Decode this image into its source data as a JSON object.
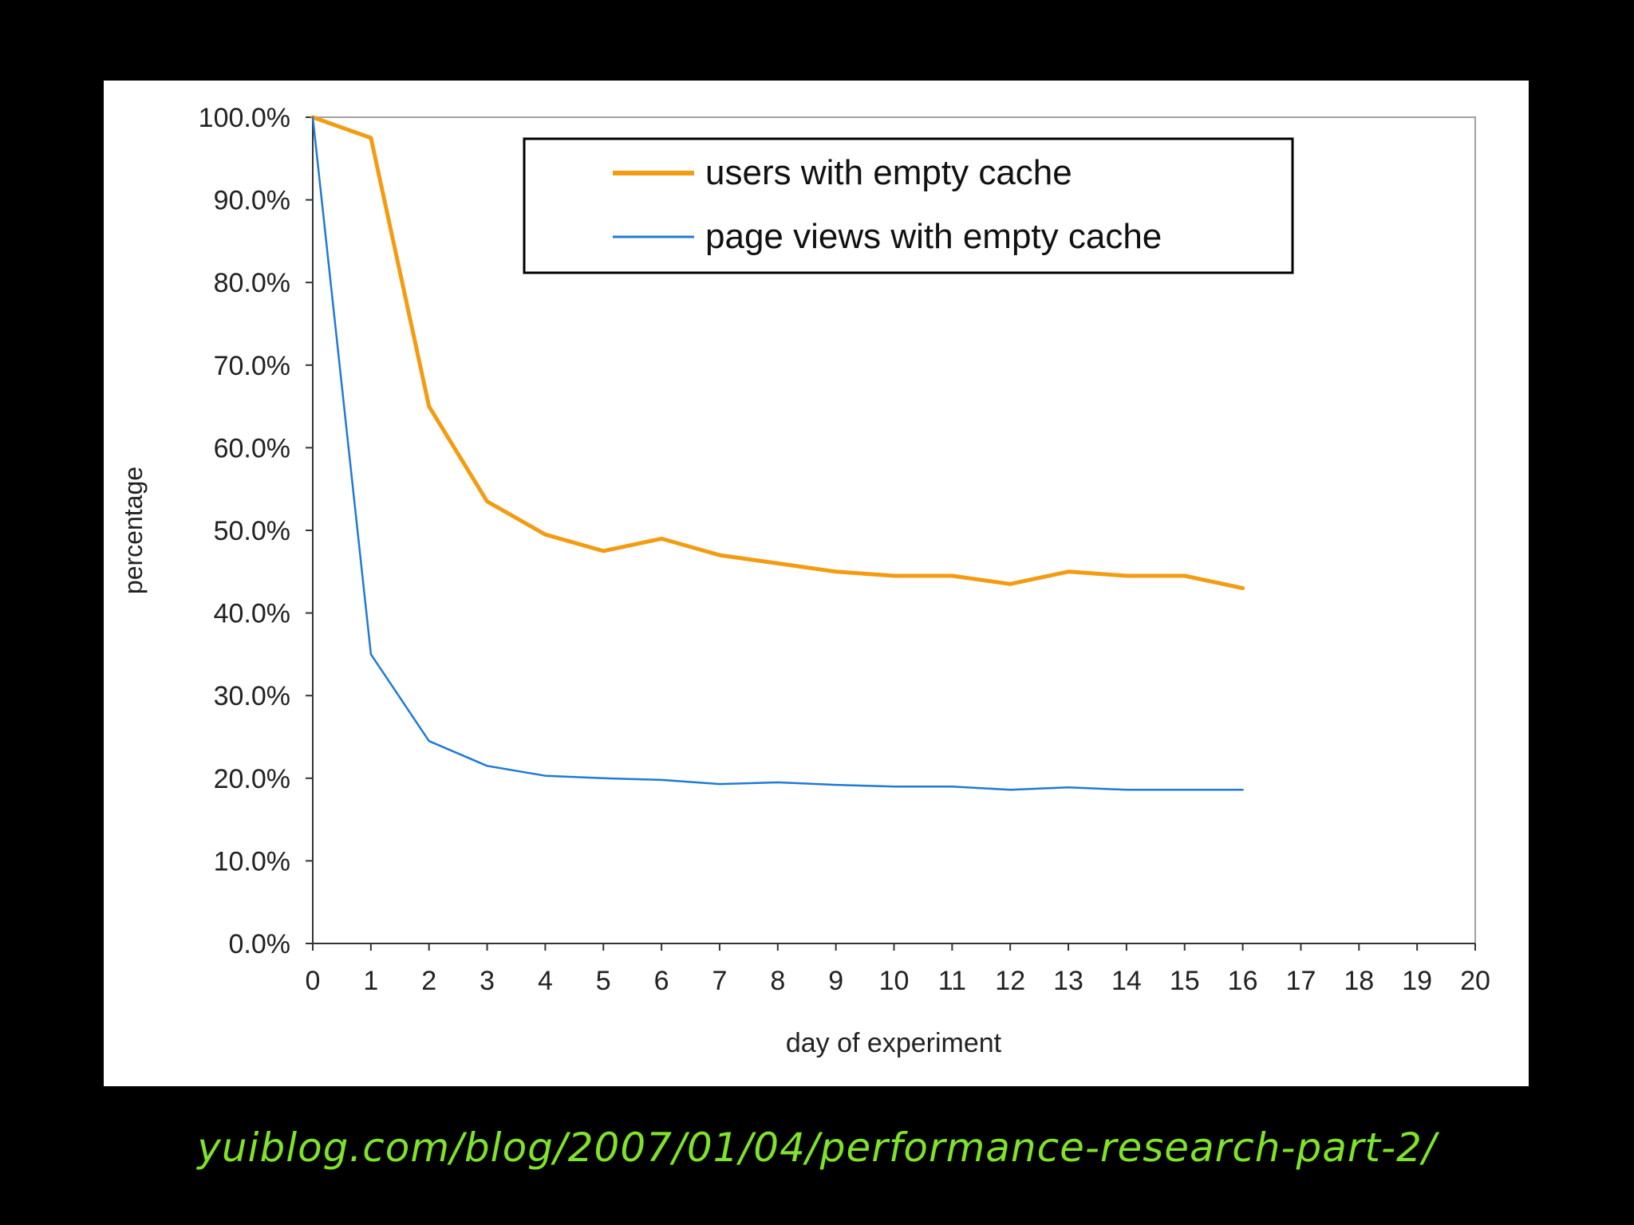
{
  "slide": {
    "background": "#000000",
    "source_url": "yuiblog.com/blog/2007/01/04/performance-research-part-2/",
    "source_color": "#7fe32a"
  },
  "chart_data": {
    "type": "line",
    "xlabel": "day of experiment",
    "ylabel": "percentage",
    "xlim": [
      0,
      20
    ],
    "ylim": [
      0,
      100
    ],
    "x_ticks": [
      "0",
      "1",
      "2",
      "3",
      "4",
      "5",
      "6",
      "7",
      "8",
      "9",
      "10",
      "11",
      "12",
      "13",
      "14",
      "15",
      "16",
      "17",
      "18",
      "19",
      "20"
    ],
    "y_ticks": [
      "0.0%",
      "10.0%",
      "20.0%",
      "30.0%",
      "40.0%",
      "50.0%",
      "60.0%",
      "70.0%",
      "80.0%",
      "90.0%",
      "100.0%"
    ],
    "grid": false,
    "legend_position": "top-center",
    "series": [
      {
        "name": "users with empty cache",
        "color": "#f39c12",
        "x": [
          0,
          1,
          2,
          3,
          4,
          5,
          6,
          7,
          8,
          9,
          10,
          11,
          12,
          13,
          14,
          15,
          16
        ],
        "values": [
          100.0,
          97.5,
          65.0,
          53.5,
          49.5,
          47.5,
          49.0,
          47.0,
          46.0,
          45.0,
          44.5,
          44.5,
          43.5,
          45.0,
          44.5,
          44.5,
          43.0
        ]
      },
      {
        "name": "page views with empty cache",
        "color": "#1f7ad6",
        "x": [
          0,
          1,
          2,
          3,
          4,
          5,
          6,
          7,
          8,
          9,
          10,
          11,
          12,
          13,
          14,
          15,
          16
        ],
        "values": [
          100.0,
          35.0,
          24.5,
          21.5,
          20.3,
          20.0,
          19.8,
          19.3,
          19.5,
          19.2,
          19.0,
          19.0,
          18.6,
          18.9,
          18.6,
          18.6,
          18.6
        ]
      }
    ]
  }
}
